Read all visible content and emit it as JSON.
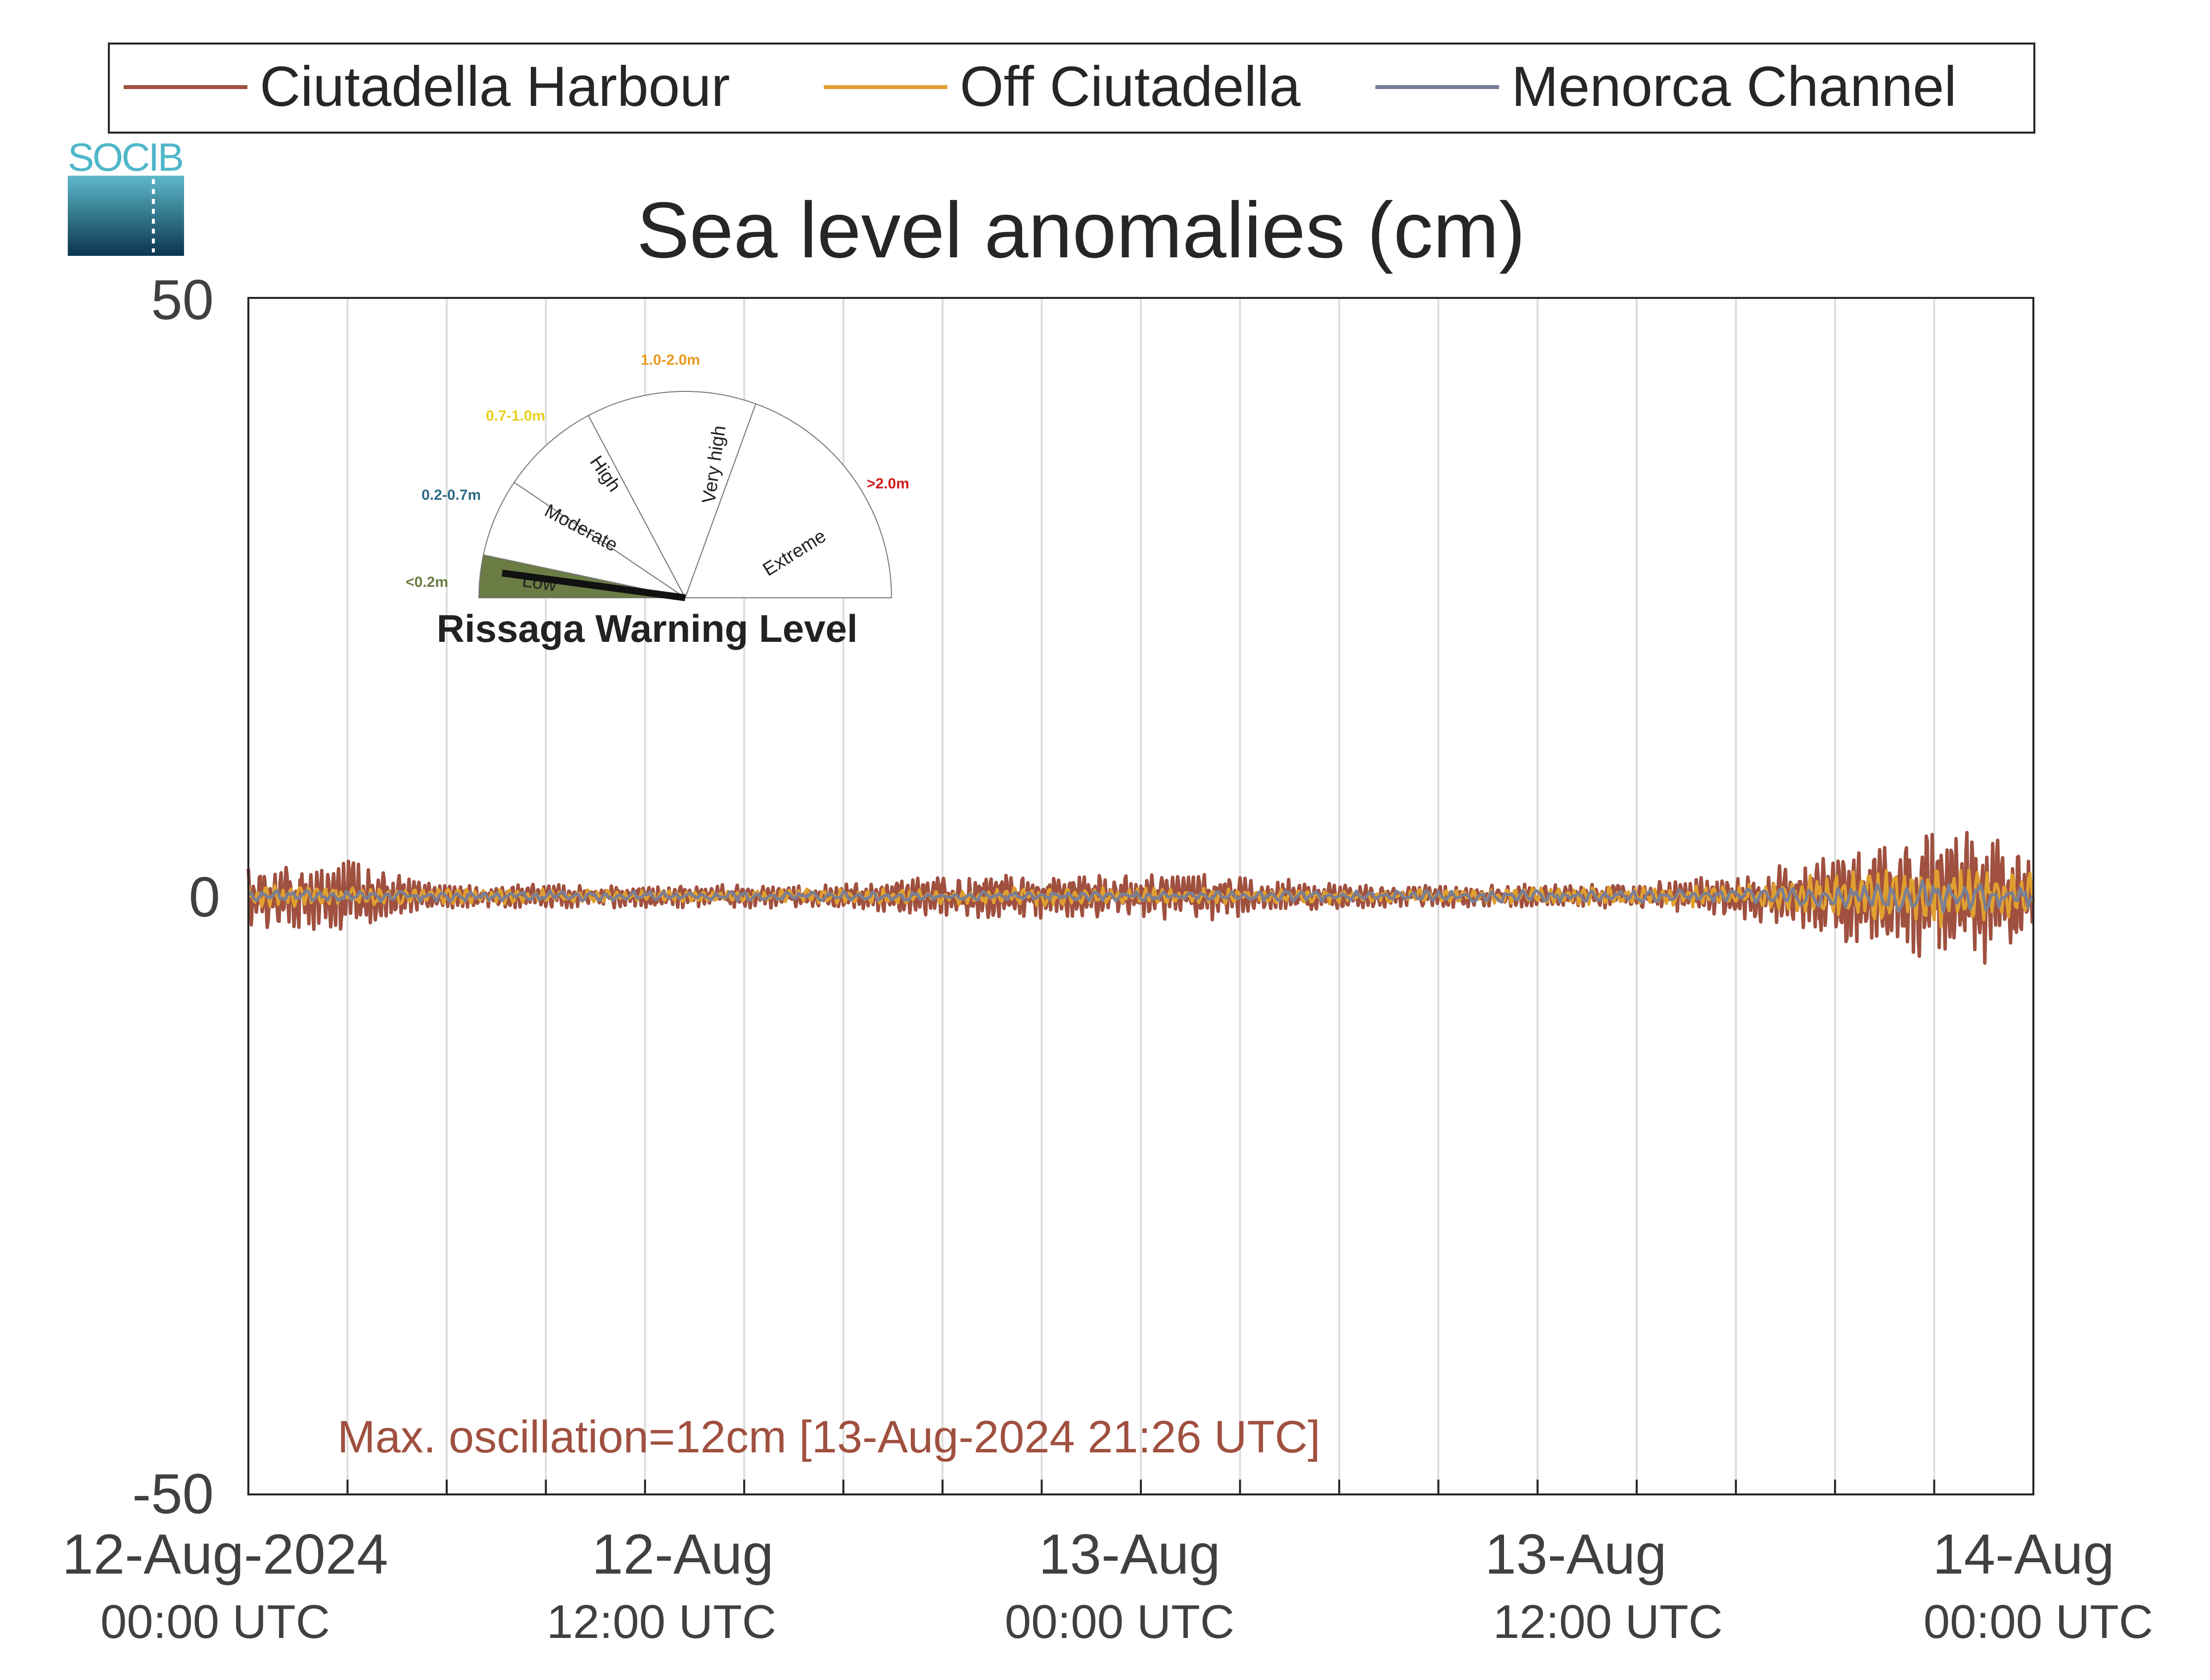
{
  "chart_data": {
    "type": "line",
    "title": "Sea level anomalies (cm)",
    "xlabel": "",
    "ylabel": "",
    "ylim": [
      -50,
      50
    ],
    "yticks": [
      "50",
      "0",
      "-50"
    ],
    "x_ticks": [
      {
        "main": "12-Aug-2024",
        "sub": "00:00 UTC"
      },
      {
        "main": "12-Aug",
        "sub": "12:00 UTC"
      },
      {
        "main": "13-Aug",
        "sub": "00:00 UTC"
      },
      {
        "main": "13-Aug",
        "sub": "12:00 UTC"
      },
      {
        "main": "14-Aug",
        "sub": "00:00 UTC"
      }
    ],
    "grid": "vertical every 3 hours",
    "legend_position": "top",
    "series": [
      {
        "name": "Ciutadella Harbour",
        "color": "#a0503f",
        "envelope": [
          [
            0,
            3
          ],
          [
            3,
            3
          ],
          [
            6,
            1
          ],
          [
            9,
            1
          ],
          [
            12,
            1
          ],
          [
            15,
            1
          ],
          [
            18,
            1
          ],
          [
            21,
            2
          ],
          [
            24,
            2
          ],
          [
            27,
            2
          ],
          [
            30,
            2
          ],
          [
            33,
            1
          ],
          [
            36,
            1
          ],
          [
            39,
            1
          ],
          [
            42,
            1
          ],
          [
            45,
            2
          ],
          [
            48,
            4
          ],
          [
            51,
            6
          ],
          [
            53,
            6
          ],
          [
            54,
            3
          ]
        ]
      },
      {
        "name": "Off Ciutadella",
        "color": "#e0a030",
        "envelope": [
          [
            0,
            1
          ],
          [
            12,
            0.5
          ],
          [
            24,
            0.8
          ],
          [
            36,
            0.6
          ],
          [
            45,
            1
          ],
          [
            48,
            2
          ],
          [
            51,
            3
          ],
          [
            54,
            2
          ]
        ]
      },
      {
        "name": "Menorca Channel",
        "color": "#7a7f95",
        "envelope": [
          [
            0,
            0.5
          ],
          [
            24,
            0.4
          ],
          [
            45,
            0.6
          ],
          [
            51,
            1.5
          ],
          [
            54,
            1
          ]
        ]
      }
    ],
    "annotation": "Max. oscillation=12cm [13-Aug-2024 21:26 UTC]"
  },
  "logo": {
    "text": "SOCIB"
  },
  "gauge": {
    "title": "Rissaga Warning Level",
    "current_level": "Low",
    "sectors": [
      {
        "label": "Low",
        "range": "<0.2m",
        "color": "#6b7c44"
      },
      {
        "label": "Moderate",
        "range": "0.2-0.7m",
        "color": "#2e6b86"
      },
      {
        "label": "High",
        "range": "0.7-1.0m",
        "color": "#e8d020"
      },
      {
        "label": "Very high",
        "range": "1.0-2.0m",
        "color": "#e79a1e"
      },
      {
        "label": "Extreme",
        "range": ">2.0m",
        "color": "#d01c1c"
      }
    ]
  }
}
